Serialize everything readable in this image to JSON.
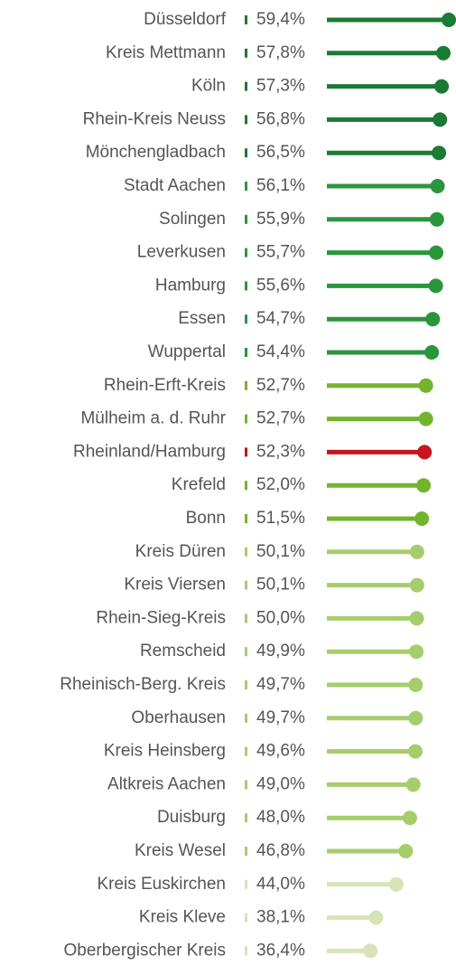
{
  "chart_data": {
    "type": "lollipop",
    "categories": [
      "Düsseldorf",
      "Kreis Mettmann",
      "Köln",
      "Rhein-Kreis Neuss",
      "Mönchengladbach",
      "Stadt Aachen",
      "Solingen",
      "Leverkusen",
      "Hamburg",
      "Essen",
      "Wuppertal",
      "Rhein-Erft-Kreis",
      "Mülheim a. d. Ruhr",
      "Rheinland/Hamburg",
      "Krefeld",
      "Bonn",
      "Kreis Düren",
      "Kreis Viersen",
      "Rhein-Sieg-Kreis",
      "Remscheid",
      "Rheinisch-Berg. Kreis",
      "Oberhausen",
      "Kreis Heinsberg",
      "Altkreis Aachen",
      "Duisburg",
      "Kreis Wesel",
      "Kreis Euskirchen",
      "Kreis Kleve",
      "Oberbergischer Kreis"
    ],
    "values": [
      59.4,
      57.8,
      57.3,
      56.8,
      56.5,
      56.1,
      55.9,
      55.7,
      55.6,
      54.7,
      54.4,
      52.7,
      52.7,
      52.3,
      52.0,
      51.5,
      50.1,
      50.1,
      50.0,
      49.9,
      49.7,
      49.7,
      49.6,
      49.0,
      48.0,
      46.8,
      44.0,
      38.1,
      36.4
    ],
    "value_labels": [
      "59,4%",
      "57,8%",
      "57,3%",
      "56,8%",
      "56,5%",
      "56,1%",
      "55,9%",
      "55,7%",
      "55,6%",
      "54,7%",
      "54,4%",
      "52,7%",
      "52,7%",
      "52,3%",
      "52,0%",
      "51,5%",
      "50,1%",
      "50,1%",
      "50,0%",
      "49,9%",
      "49,7%",
      "49,7%",
      "49,6%",
      "49,0%",
      "48,0%",
      "46,8%",
      "44,0%",
      "38,1%",
      "36,4%"
    ],
    "colors": [
      "#1b7a33",
      "#1b7a33",
      "#1b7a33",
      "#1b7a33",
      "#1b7a33",
      "#2a963c",
      "#2a963c",
      "#2a963c",
      "#2a963c",
      "#2a963c",
      "#2a963c",
      "#72b52d",
      "#72b52d",
      "#c8141c",
      "#72b52d",
      "#72b52d",
      "#a6cd6c",
      "#a6cd6c",
      "#a6cd6c",
      "#a6cd6c",
      "#a6cd6c",
      "#a6cd6c",
      "#a6cd6c",
      "#a6cd6c",
      "#a6cd6c",
      "#a6cd6c",
      "#d6e4b6",
      "#d6e4b6",
      "#d6e4b6"
    ]
  }
}
